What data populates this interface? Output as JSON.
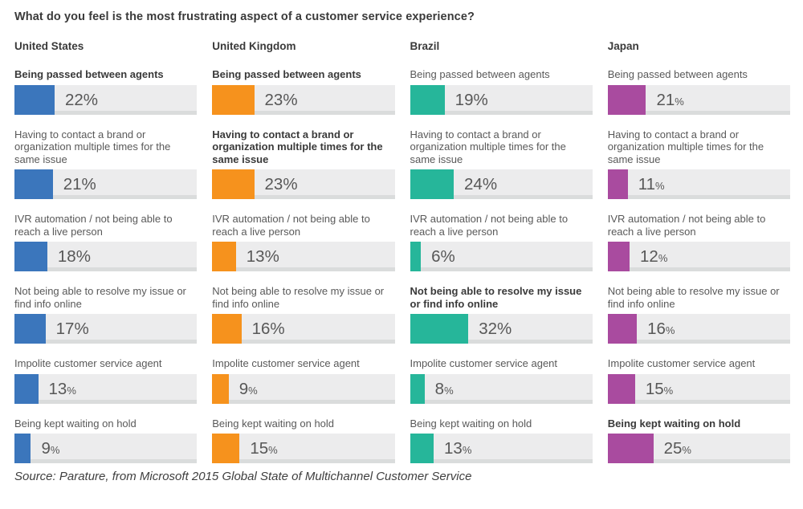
{
  "title": "What do you feel is the most frustrating aspect of a customer service experience?",
  "source": "Source: Parature, from Microsoft 2015 Global State of Multichannel Customer Service",
  "percent_sign": "%",
  "colors": {
    "united_states": "#3B76BC",
    "united_kingdom": "#F6921D",
    "brazil": "#26B69A",
    "japan": "#A94B9F",
    "bar_track": "#ECECED",
    "bar_track_shadow": "#DADCDC",
    "label_text": "#595959",
    "bold_text": "#3A3A3A"
  },
  "watermarks": [
    "united-states-map",
    "united-kingdom-map",
    "brazil-map",
    "japan-map"
  ],
  "chart_data": {
    "type": "bar",
    "orientation": "horizontal",
    "unit": "%",
    "xlim": [
      0,
      100
    ],
    "title": "What do you feel is the most frustrating aspect of a customer service experience?",
    "legend_position": "column-headers",
    "grid": false,
    "categories": [
      "Being passed between agents",
      "Having to contact a brand or organization multiple times for the same issue",
      "IVR automation / not being able to reach a live person",
      "Not being able to resolve my issue or find info online",
      "Impolite customer service agent",
      "Being kept waiting on hold"
    ],
    "series": [
      {
        "name": "United States",
        "color": "#3B76BC",
        "values": [
          22,
          21,
          18,
          17,
          13,
          9
        ],
        "bold": [
          true,
          false,
          false,
          false,
          false,
          false
        ],
        "pct_small": [
          false,
          false,
          false,
          false,
          true,
          true
        ]
      },
      {
        "name": "United Kingdom",
        "color": "#F6921D",
        "values": [
          23,
          23,
          13,
          16,
          9,
          15
        ],
        "bold": [
          true,
          true,
          false,
          false,
          false,
          false
        ],
        "pct_small": [
          false,
          false,
          false,
          false,
          true,
          true
        ]
      },
      {
        "name": "Brazil",
        "color": "#26B69A",
        "values": [
          19,
          24,
          6,
          32,
          8,
          13
        ],
        "bold": [
          false,
          false,
          false,
          true,
          false,
          false
        ],
        "pct_small": [
          false,
          false,
          false,
          false,
          true,
          true
        ]
      },
      {
        "name": "Japan",
        "color": "#A94B9F",
        "values": [
          21,
          11,
          12,
          16,
          15,
          25
        ],
        "bold": [
          false,
          false,
          false,
          false,
          false,
          true
        ],
        "pct_small": [
          true,
          true,
          true,
          true,
          true,
          true
        ]
      }
    ]
  }
}
